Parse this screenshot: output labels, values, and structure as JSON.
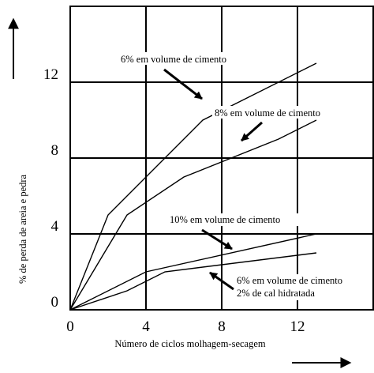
{
  "chart_data": {
    "type": "line",
    "xlabel": "Número de ciclos molhagem-secagem",
    "ylabel": "% de perda de areia e pedra",
    "xlim": [
      0,
      16
    ],
    "ylim": [
      0,
      16
    ],
    "x_ticks": [
      "0",
      "4",
      "8",
      "12"
    ],
    "y_ticks": [
      "0",
      "4",
      "8",
      "12"
    ],
    "grid": true,
    "series": [
      {
        "points": [
          [
            0,
            0
          ],
          [
            2,
            5
          ],
          [
            7,
            10
          ],
          [
            13,
            13
          ]
        ]
      },
      {
        "points": [
          [
            0,
            0
          ],
          [
            3,
            5
          ],
          [
            6,
            7
          ],
          [
            11,
            9
          ],
          [
            13,
            10
          ]
        ]
      },
      {
        "points": [
          [
            0,
            0
          ],
          [
            4,
            2
          ],
          [
            13,
            4
          ]
        ]
      },
      {
        "points": [
          [
            0,
            0
          ],
          [
            3,
            1
          ],
          [
            5,
            2
          ],
          [
            13,
            3
          ]
        ]
      }
    ],
    "annotations": [
      {
        "lines": [
          "6% em volume de cimento"
        ]
      },
      {
        "lines": [
          "8% em volume de cimento"
        ]
      },
      {
        "lines": [
          "10% em volume de cimento"
        ]
      },
      {
        "lines": [
          "6% em volume de cimento",
          "2% de cal hidratada"
        ]
      }
    ]
  }
}
